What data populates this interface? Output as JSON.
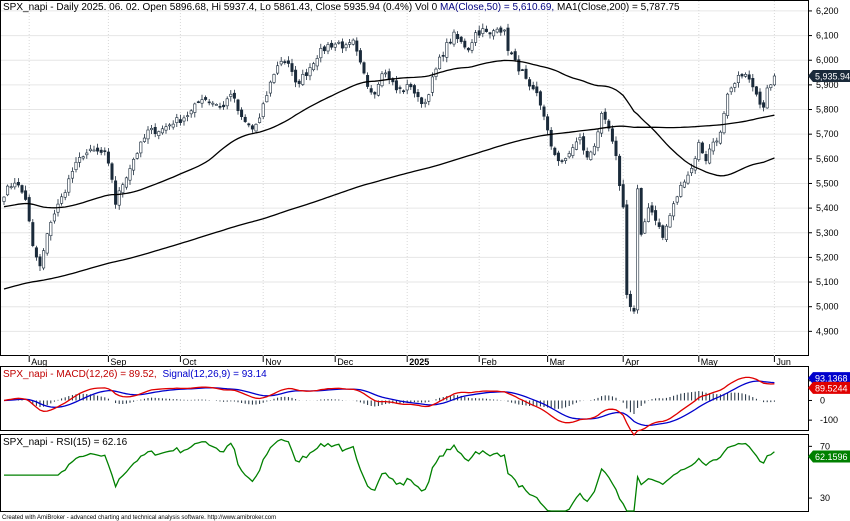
{
  "chart_data": {
    "type": "candlestick",
    "symbol": "SPX_napi",
    "header": {
      "prefix": "SPX_napi - Daily 2025. 06. 02. Open 5896.68, Hi 5937.4, Lo 5861.43, Close 5935.94 (0.4%) Vol 0",
      "ma50": "MA(Close,50) = 5,610.69,",
      "ma200": "MA1(Close,200) = 5,787.75"
    },
    "price_axis": {
      "ylim": [
        4800,
        6220
      ],
      "ticks": [
        "6,200",
        "6,100",
        "6,000",
        "5,900",
        "5,800",
        "5,700",
        "5,600",
        "5,500",
        "5,400",
        "5,300",
        "5,200",
        "5,100",
        "5,000",
        "4,900"
      ],
      "last_value": "5,935.94"
    },
    "months": [
      {
        "label": "Aug",
        "bar": 7,
        "bold": false
      },
      {
        "label": "Sep",
        "bar": 29,
        "bold": false
      },
      {
        "label": "Oct",
        "bar": 49,
        "bold": false
      },
      {
        "label": "Nov",
        "bar": 72,
        "bold": false
      },
      {
        "label": "Dec",
        "bar": 92,
        "bold": false
      },
      {
        "label": "2025",
        "bar": 112,
        "bold": true
      },
      {
        "label": "Feb",
        "bar": 132,
        "bold": false
      },
      {
        "label": "Mar",
        "bar": 151,
        "bold": false
      },
      {
        "label": "Apr",
        "bar": 172,
        "bold": false
      },
      {
        "label": "May",
        "bar": 193,
        "bold": false
      },
      {
        "label": "Jun",
        "bar": 214,
        "bold": false
      }
    ],
    "close_keypoints": [
      [
        0,
        5460
      ],
      [
        3,
        5510
      ],
      [
        6,
        5440
      ],
      [
        8,
        5240
      ],
      [
        10,
        5160
      ],
      [
        13,
        5350
      ],
      [
        16,
        5440
      ],
      [
        19,
        5550
      ],
      [
        22,
        5620
      ],
      [
        25,
        5630
      ],
      [
        28,
        5620
      ],
      [
        30,
        5520
      ],
      [
        31,
        5420
      ],
      [
        33,
        5500
      ],
      [
        36,
        5600
      ],
      [
        40,
        5710
      ],
      [
        44,
        5720
      ],
      [
        47,
        5750
      ],
      [
        49,
        5760
      ],
      [
        52,
        5790
      ],
      [
        55,
        5850
      ],
      [
        58,
        5830
      ],
      [
        61,
        5810
      ],
      [
        63,
        5870
      ],
      [
        66,
        5760
      ],
      [
        69,
        5720
      ],
      [
        71,
        5760
      ],
      [
        73,
        5860
      ],
      [
        75,
        5950
      ],
      [
        77,
        6000
      ],
      [
        79,
        5990
      ],
      [
        81,
        5900
      ],
      [
        84,
        5950
      ],
      [
        87,
        6020
      ],
      [
        90,
        6060
      ],
      [
        93,
        6070
      ],
      [
        95,
        6050
      ],
      [
        97,
        6070
      ],
      [
        99,
        5980
      ],
      [
        101,
        5900
      ],
      [
        103,
        5870
      ],
      [
        105,
        5960
      ],
      [
        107,
        5930
      ],
      [
        109,
        5880
      ],
      [
        111,
        5880
      ],
      [
        113,
        5900
      ],
      [
        115,
        5840
      ],
      [
        117,
        5830
      ],
      [
        119,
        5920
      ],
      [
        121,
        6000
      ],
      [
        123,
        6060
      ],
      [
        125,
        6100
      ],
      [
        127,
        6070
      ],
      [
        129,
        6050
      ],
      [
        131,
        6110
      ],
      [
        133,
        6120
      ],
      [
        135,
        6100
      ],
      [
        137,
        6140
      ],
      [
        139,
        6110
      ],
      [
        140,
        6050
      ],
      [
        142,
        5990
      ],
      [
        144,
        5950
      ],
      [
        146,
        5880
      ],
      [
        148,
        5860
      ],
      [
        150,
        5780
      ],
      [
        152,
        5640
      ],
      [
        154,
        5600
      ],
      [
        156,
        5590
      ],
      [
        158,
        5650
      ],
      [
        160,
        5680
      ],
      [
        162,
        5600
      ],
      [
        164,
        5660
      ],
      [
        166,
        5770
      ],
      [
        168,
        5720
      ],
      [
        170,
        5600
      ],
      [
        172,
        5400
      ],
      [
        173,
        5060
      ],
      [
        174,
        5000
      ],
      [
        175,
        4980
      ],
      [
        176,
        5470
      ],
      [
        177,
        5280
      ],
      [
        179,
        5410
      ],
      [
        181,
        5360
      ],
      [
        183,
        5280
      ],
      [
        185,
        5370
      ],
      [
        187,
        5450
      ],
      [
        189,
        5520
      ],
      [
        191,
        5560
      ],
      [
        193,
        5660
      ],
      [
        195,
        5600
      ],
      [
        197,
        5670
      ],
      [
        199,
        5700
      ],
      [
        201,
        5850
      ],
      [
        203,
        5900
      ],
      [
        205,
        5950
      ],
      [
        207,
        5920
      ],
      [
        209,
        5850
      ],
      [
        211,
        5820
      ],
      [
        212,
        5900
      ],
      [
        213,
        5912
      ],
      [
        214,
        5936
      ]
    ],
    "ma50_label": "MA(Close,50)",
    "ma200_label": "MA1(Close,200)",
    "macd": {
      "label": "SPX_napi - MACD(12,26) = 89.52,",
      "signal_label": "Signal(12,26,9) = 93.14",
      "ticks": [
        "100",
        "0",
        "-100"
      ],
      "ylim": [
        -150,
        170
      ],
      "last_signal": "93.1368",
      "last_macd": "89.5244"
    },
    "rsi": {
      "label": "SPX_napi - RSI(15) = 62.16",
      "ticks": [
        "70",
        "30"
      ],
      "ylim": [
        20,
        78
      ],
      "last_value": "62.1596"
    },
    "footer": "Created with AmiBroker - advanced charting and technical analysis software. http://www.amibroker.com",
    "colors": {
      "up": "#ffffff",
      "down": "#1a2a3a",
      "macd": "#e00000",
      "signal": "#0000cc",
      "rsi": "#008000",
      "ma": "#000000",
      "tag_price": "#1a2a3a",
      "tag_signal": "#0000cc",
      "tag_macd": "#e00000",
      "tag_rsi": "#008000"
    }
  }
}
